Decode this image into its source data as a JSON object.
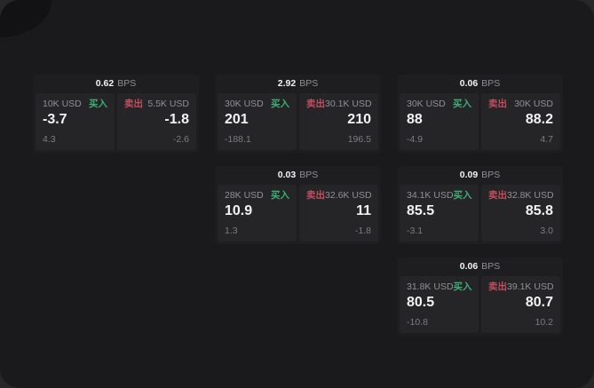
{
  "labels": {
    "bps": "BPS",
    "buy": "买入",
    "sell": "卖出"
  },
  "theme": {
    "backdrop": "#27272a",
    "frame_bg": "#1a1a1c",
    "corner_overlay": "#121214",
    "card_bg": "#1e1e20",
    "panel_bg": "#252528",
    "text_primary": "#f2f2f2",
    "text_muted": "#909095",
    "text_faint": "#7c7c80",
    "buy_color": "#3fae73",
    "sell_color": "#c44d5e"
  },
  "cards": [
    {
      "col": 1,
      "row": 1,
      "bps": "0.62",
      "buy": {
        "size": "10K USD",
        "price": "-3.7",
        "change": "4.3"
      },
      "sell": {
        "size": "5.5K USD",
        "price": "-1.8",
        "change": "-2.6"
      }
    },
    {
      "col": 2,
      "row": 1,
      "bps": "2.92",
      "buy": {
        "size": "30K USD",
        "price": "201",
        "change": "-188.1"
      },
      "sell": {
        "size": "30.1K USD",
        "price": "210",
        "change": "196.5"
      }
    },
    {
      "col": 3,
      "row": 1,
      "bps": "0.06",
      "buy": {
        "size": "30K USD",
        "price": "88",
        "change": "-4.9"
      },
      "sell": {
        "size": "30K USD",
        "price": "88.2",
        "change": "4.7"
      }
    },
    {
      "col": 2,
      "row": 2,
      "bps": "0.03",
      "buy": {
        "size": "28K USD",
        "price": "10.9",
        "change": "1.3"
      },
      "sell": {
        "size": "32.6K USD",
        "price": "11",
        "change": "-1.8"
      }
    },
    {
      "col": 3,
      "row": 2,
      "bps": "0.09",
      "buy": {
        "size": "34.1K USD",
        "price": "85.5",
        "change": "-3.1"
      },
      "sell": {
        "size": "32.8K USD",
        "price": "85.8",
        "change": "3.0"
      }
    },
    {
      "col": 3,
      "row": 3,
      "bps": "0.06",
      "buy": {
        "size": "31.8K USD",
        "price": "80.5",
        "change": "-10.8"
      },
      "sell": {
        "size": "39.1K USD",
        "price": "80.7",
        "change": "10.2"
      }
    }
  ]
}
